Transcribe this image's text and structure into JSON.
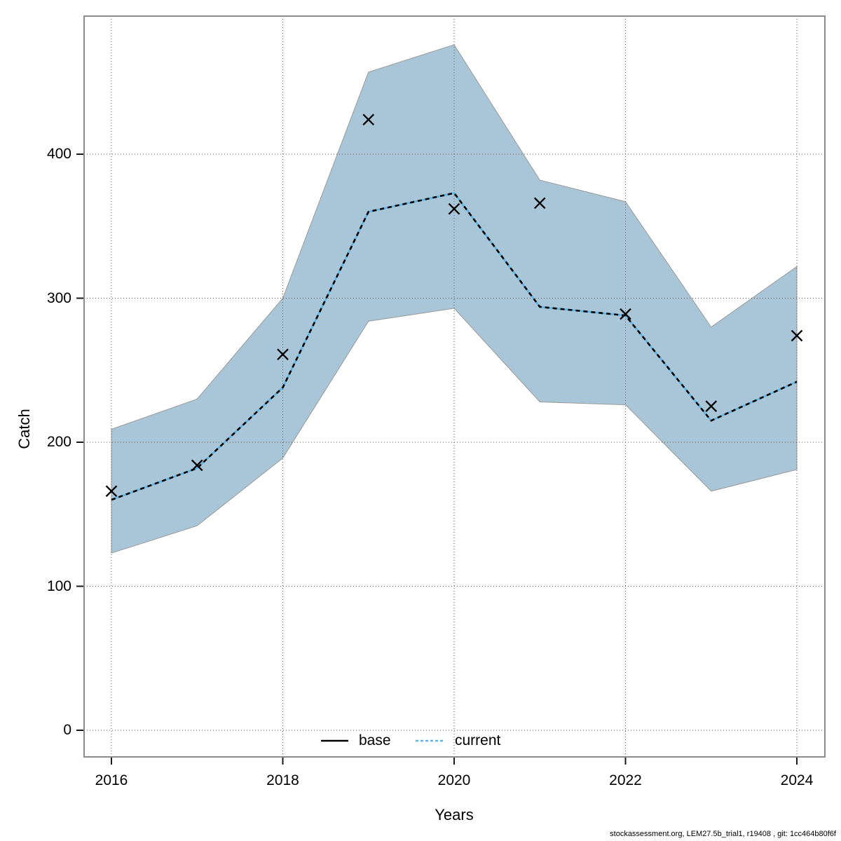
{
  "caption": "stockassessment.org, LEM27.5b_trial1, r19408 , git: 1cc464b80f6f",
  "chart_data": {
    "type": "line",
    "title": "",
    "xlabel": "Years",
    "ylabel": "Catch",
    "x": [
      2016,
      2017,
      2018,
      2019,
      2020,
      2021,
      2022,
      2023,
      2024
    ],
    "x_tick_labels": [
      "2016",
      "2018",
      "2020",
      "2022",
      "2024"
    ],
    "x_tick_values": [
      2016,
      2018,
      2020,
      2022,
      2024
    ],
    "y_tick_labels": [
      "400",
      "300",
      "200",
      "100",
      "0"
    ],
    "y_tick_values": [
      400,
      300,
      200,
      100,
      0
    ],
    "xlim": [
      2015.7,
      2024.3
    ],
    "ylim": [
      -18,
      496
    ],
    "grid": "dotted",
    "band": {
      "label": "confidence-interval",
      "color": "#a8c6d8",
      "edge_color": "#9a9a9a",
      "upper": [
        209,
        230,
        300,
        457,
        476,
        382,
        367,
        280,
        322
      ],
      "lower": [
        123,
        142,
        189,
        284,
        293,
        228,
        226,
        166,
        181
      ]
    },
    "series": [
      {
        "name": "base",
        "line": "solid",
        "color": "#000000",
        "values": [
          160,
          182,
          238,
          360,
          373,
          294,
          288,
          215,
          242
        ]
      },
      {
        "name": "current",
        "line": "dotted",
        "color": "#5fb4e4",
        "values": [
          160,
          182,
          238,
          360,
          373,
          294,
          288,
          215,
          242
        ]
      }
    ],
    "markers": {
      "name": "observed-catch",
      "symbol": "x",
      "color": "#000000",
      "values": [
        166,
        184,
        261,
        424,
        362,
        366,
        289,
        225,
        274
      ]
    },
    "legend": {
      "position": "bottom-center",
      "entries": [
        {
          "label": "base",
          "line": "solid",
          "color": "#000000"
        },
        {
          "label": "current",
          "line": "dotted",
          "color": "#5fb4e4"
        }
      ]
    },
    "frame_color": "#8c8c8c",
    "grid_color": "#555555",
    "tick_color": "#1a1a1a"
  }
}
